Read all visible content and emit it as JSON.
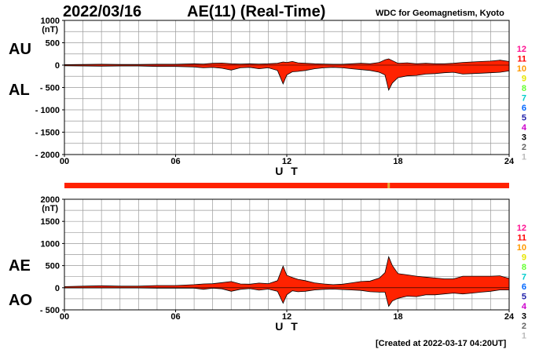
{
  "header": {
    "date": "2022/03/16",
    "title": "AE(11) (Real-Time)",
    "source": "WDC for Geomagnetism, Kyoto"
  },
  "footer": {
    "created": "[Created at 2022-03-17 04:20UT]"
  },
  "colors": {
    "fill": "#ff2200",
    "line": "#000000",
    "grid": "#9a9a9a",
    "station_bar": "#ff2200",
    "station_gap": "#e8a838"
  },
  "station_counts": [
    {
      "label": "12",
      "color": "#ff1493"
    },
    {
      "label": "11",
      "color": "#ff0000"
    },
    {
      "label": "10",
      "color": "#ff9900"
    },
    {
      "label": "9",
      "color": "#e6e600"
    },
    {
      "label": "8",
      "color": "#66ff33"
    },
    {
      "label": "7",
      "color": "#00cccc"
    },
    {
      "label": "6",
      "color": "#0066ff"
    },
    {
      "label": "5",
      "color": "#2222aa"
    },
    {
      "label": "4",
      "color": "#cc00cc"
    },
    {
      "label": "3",
      "color": "#000000"
    },
    {
      "label": "2",
      "color": "#666666"
    },
    {
      "label": "1",
      "color": "#bbbbbb"
    }
  ],
  "chart_data": [
    {
      "type": "area",
      "panel": "AU/AL",
      "series_labels": [
        "AU",
        "AL"
      ],
      "ylabel_unit": "(nT)",
      "xlabel": "U T",
      "xlim": [
        0,
        24
      ],
      "xticks": [
        0,
        6,
        12,
        18,
        24
      ],
      "xtick_labels": [
        "00",
        "06",
        "12",
        "18",
        "24"
      ],
      "ylim": [
        -2000,
        1000
      ],
      "yticks": [
        1000,
        500,
        0,
        -500,
        -1000,
        -1500,
        -2000
      ],
      "ytick_labels": [
        "1000",
        "500",
        "0",
        "- 500",
        "- 1000",
        "- 1500",
        "- 2000"
      ],
      "grid": true,
      "x": [
        0,
        1,
        2,
        3,
        4,
        5,
        6,
        7,
        7.5,
        8,
        8.5,
        9,
        9.5,
        10,
        10.5,
        11,
        11.5,
        11.8,
        12,
        12.3,
        12.6,
        13,
        13.5,
        14,
        14.5,
        15,
        15.5,
        16,
        16.5,
        17,
        17.3,
        17.5,
        17.7,
        18,
        18.5,
        19,
        19.5,
        20,
        20.5,
        21,
        21.5,
        22,
        22.5,
        23,
        23.5,
        24
      ],
      "upper": [
        10,
        15,
        20,
        15,
        15,
        20,
        20,
        30,
        25,
        40,
        45,
        30,
        25,
        30,
        25,
        30,
        40,
        70,
        60,
        80,
        50,
        40,
        30,
        25,
        20,
        20,
        30,
        40,
        30,
        60,
        120,
        140,
        100,
        40,
        50,
        30,
        40,
        30,
        30,
        40,
        60,
        70,
        80,
        90,
        110,
        80
      ],
      "lower": [
        -15,
        -20,
        -25,
        -20,
        -20,
        -30,
        -30,
        -40,
        -60,
        -50,
        -70,
        -110,
        -60,
        -50,
        -80,
        -60,
        -120,
        -420,
        -220,
        -150,
        -140,
        -120,
        -80,
        -60,
        -50,
        -60,
        -80,
        -100,
        -120,
        -160,
        -220,
        -560,
        -400,
        -280,
        -240,
        -230,
        -200,
        -190,
        -170,
        -160,
        -200,
        -190,
        -180,
        -170,
        -160,
        -130
      ]
    },
    {
      "type": "area",
      "panel": "AE/AO",
      "series_labels": [
        "AE",
        "AO"
      ],
      "ylabel_unit": "(nT)",
      "xlabel": "U T",
      "xlim": [
        0,
        24
      ],
      "xticks": [
        0,
        6,
        12,
        18,
        24
      ],
      "xtick_labels": [
        "00",
        "06",
        "12",
        "18",
        "24"
      ],
      "ylim": [
        -500,
        2000
      ],
      "yticks": [
        2000,
        1500,
        1000,
        500,
        0,
        -500
      ],
      "ytick_labels": [
        "2000",
        "1500",
        "1000",
        "500",
        "0",
        "- 500"
      ],
      "grid": true,
      "x": [
        0,
        1,
        2,
        3,
        4,
        5,
        6,
        7,
        7.5,
        8,
        8.5,
        9,
        9.5,
        10,
        10.5,
        11,
        11.5,
        11.8,
        12,
        12.3,
        12.6,
        13,
        13.5,
        14,
        14.5,
        15,
        15.5,
        16,
        16.5,
        17,
        17.3,
        17.5,
        17.7,
        18,
        18.5,
        19,
        19.5,
        20,
        20.5,
        21,
        21.5,
        22,
        22.5,
        23,
        23.5,
        24
      ],
      "upper": [
        25,
        35,
        45,
        35,
        35,
        50,
        50,
        70,
        85,
        90,
        115,
        140,
        85,
        80,
        105,
        90,
        160,
        490,
        280,
        230,
        190,
        160,
        110,
        85,
        70,
        80,
        110,
        140,
        150,
        220,
        340,
        700,
        500,
        320,
        290,
        260,
        240,
        220,
        200,
        200,
        260,
        260,
        260,
        260,
        270,
        210
      ],
      "lower": [
        -5,
        -5,
        -5,
        -5,
        -5,
        -10,
        -10,
        -10,
        -35,
        -10,
        -25,
        -80,
        -35,
        -20,
        -55,
        -30,
        -80,
        -350,
        -160,
        -70,
        -90,
        -80,
        -50,
        -35,
        -30,
        -40,
        -50,
        -60,
        -90,
        -100,
        -100,
        -420,
        -300,
        -240,
        -190,
        -200,
        -160,
        -160,
        -140,
        -120,
        -140,
        -120,
        -100,
        -80,
        -50,
        -50
      ]
    }
  ]
}
